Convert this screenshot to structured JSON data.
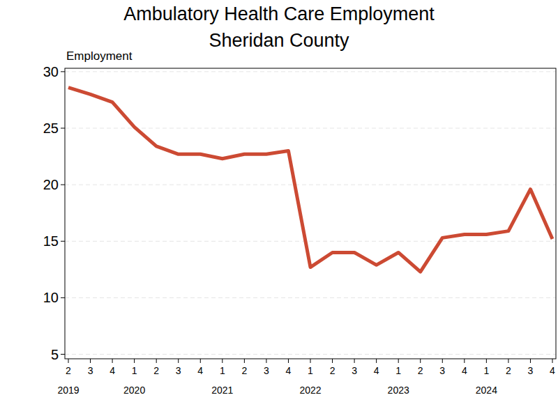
{
  "chart_data": {
    "type": "line",
    "title": "Ambulatory Health Care Employment",
    "subtitle": "Sheridan County",
    "y_label": "Employment",
    "categories": [
      "2",
      "3",
      "4",
      "1",
      "2",
      "3",
      "4",
      "1",
      "2",
      "3",
      "4",
      "1",
      "2",
      "3",
      "4",
      "1",
      "2",
      "3",
      "4",
      "1",
      "2",
      "3",
      "4"
    ],
    "year_labels": [
      "2019",
      null,
      null,
      "2020",
      null,
      null,
      null,
      "2021",
      null,
      null,
      null,
      "2022",
      null,
      null,
      null,
      "2023",
      null,
      null,
      null,
      "2024",
      null,
      null,
      null
    ],
    "values": [
      28.6,
      28.0,
      27.3,
      25.1,
      23.4,
      22.7,
      22.7,
      22.3,
      22.7,
      22.7,
      23.0,
      12.7,
      14.0,
      14.0,
      12.9,
      14.0,
      12.3,
      15.3,
      15.6,
      15.6,
      15.9,
      19.6,
      15.2
    ],
    "color": "#cc4a33",
    "ylim": [
      4.6,
      30.3
    ],
    "yticks": [
      5,
      10,
      15,
      20,
      25,
      30
    ],
    "grid": true
  }
}
